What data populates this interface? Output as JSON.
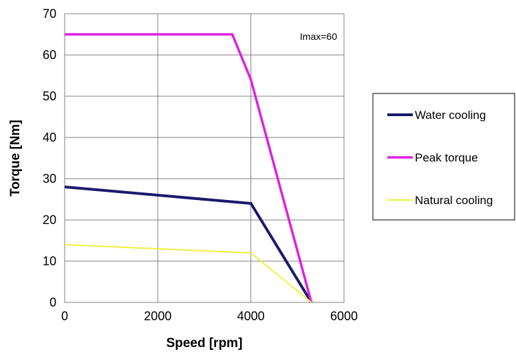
{
  "chart_data": {
    "type": "line",
    "title": "",
    "xlabel": "Speed [rpm]",
    "ylabel": "Torque [Nm]",
    "xlim": [
      0,
      6000
    ],
    "ylim": [
      0,
      70
    ],
    "xticks": [
      0,
      2000,
      4000,
      6000
    ],
    "xtick_labels": [
      "0",
      "2000",
      "4000",
      "6000"
    ],
    "yticks": [
      0,
      10,
      20,
      30,
      40,
      50,
      60,
      70
    ],
    "ytick_labels": [
      "0",
      "10",
      "20",
      "30",
      "40",
      "50",
      "60",
      "70"
    ],
    "grid": true,
    "legend_position": "right",
    "annotation": "Imax=60",
    "series": [
      {
        "name": "Water cooling",
        "color": "#1a1a6e",
        "points": [
          [
            0,
            28
          ],
          [
            4000,
            24
          ],
          [
            5300,
            0
          ]
        ]
      },
      {
        "name": "Peak torque",
        "color": "#e020e0",
        "points": [
          [
            0,
            65
          ],
          [
            3600,
            65
          ],
          [
            4000,
            54
          ],
          [
            5300,
            0
          ]
        ]
      },
      {
        "name": "Natural cooling",
        "color": "#f0f040",
        "points": [
          [
            0,
            14
          ],
          [
            4000,
            12
          ],
          [
            5300,
            0
          ]
        ]
      }
    ]
  }
}
